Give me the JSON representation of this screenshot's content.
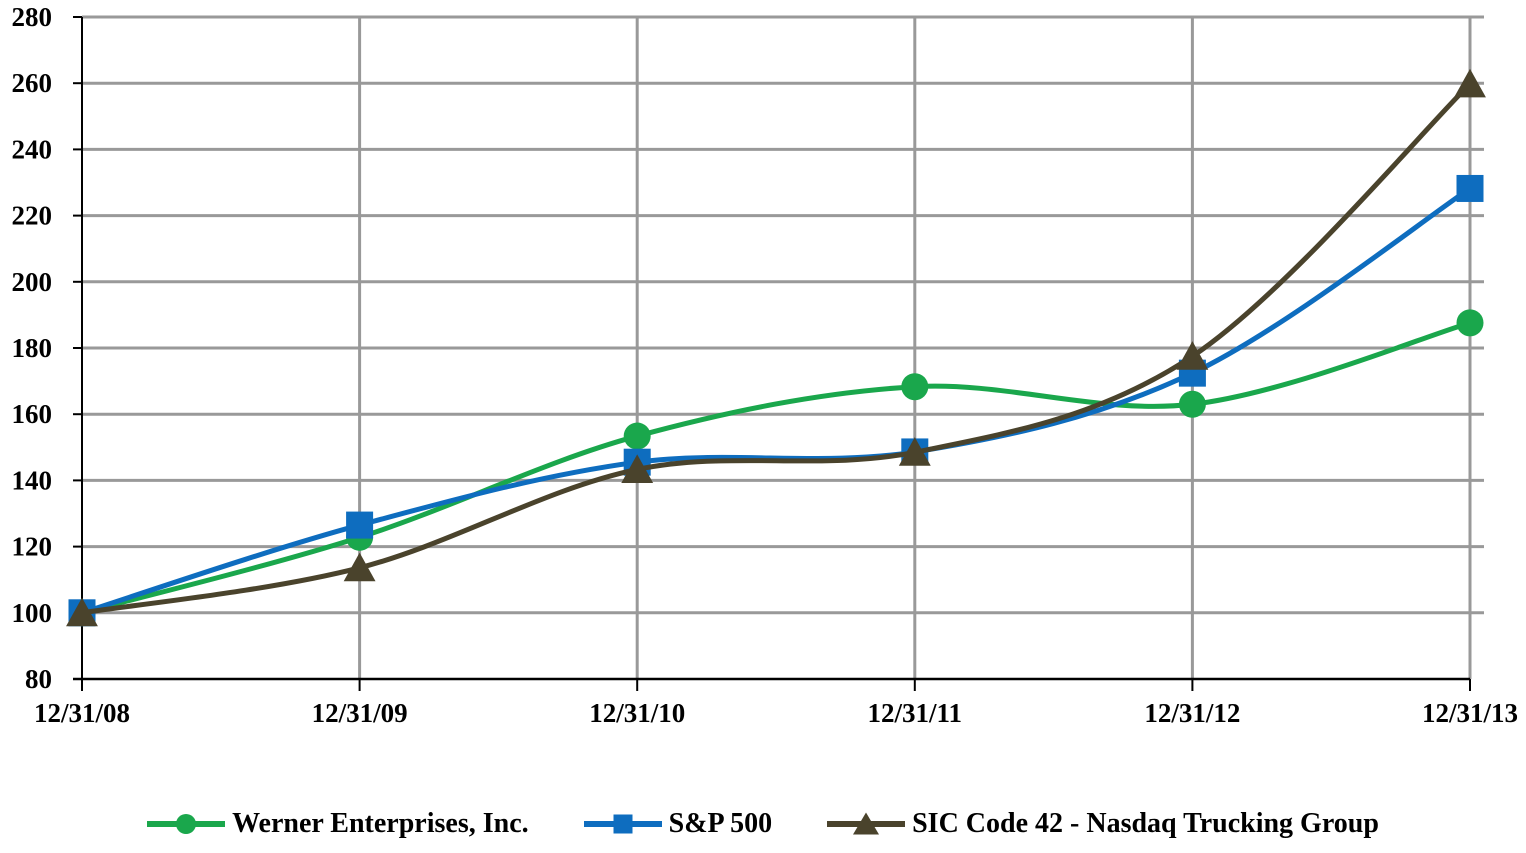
{
  "chart_data": {
    "type": "line",
    "title": "",
    "xlabel": "",
    "ylabel": "",
    "categories": [
      "12/31/08",
      "12/31/09",
      "12/31/10",
      "12/31/11",
      "12/31/12",
      "12/31/13"
    ],
    "series": [
      {
        "name": "Werner Enterprises, Inc.",
        "marker": "circle",
        "color": "#1AA74C",
        "values": [
          100,
          122.8,
          153.4,
          168.3,
          163,
          187.6
        ]
      },
      {
        "name": "S&P 500",
        "marker": "square",
        "color": "#0E6DBF",
        "values": [
          100,
          126.5,
          145.5,
          148.6,
          172.4,
          228.2
        ]
      },
      {
        "name": "SIC Code 42 - Nasdaq Trucking Group",
        "marker": "triangle",
        "color": "#4A432C",
        "values": [
          100,
          113.6,
          143.3,
          148.5,
          177.5,
          259.8
        ]
      }
    ],
    "ylim": [
      80,
      280
    ],
    "ytick_step": 20,
    "grid": true,
    "smooth": true,
    "legend_position": "bottom"
  },
  "colors": {
    "background": "#FFFFFF",
    "gridline": "#999999",
    "axis": "#000000",
    "label_text": "#000000"
  }
}
